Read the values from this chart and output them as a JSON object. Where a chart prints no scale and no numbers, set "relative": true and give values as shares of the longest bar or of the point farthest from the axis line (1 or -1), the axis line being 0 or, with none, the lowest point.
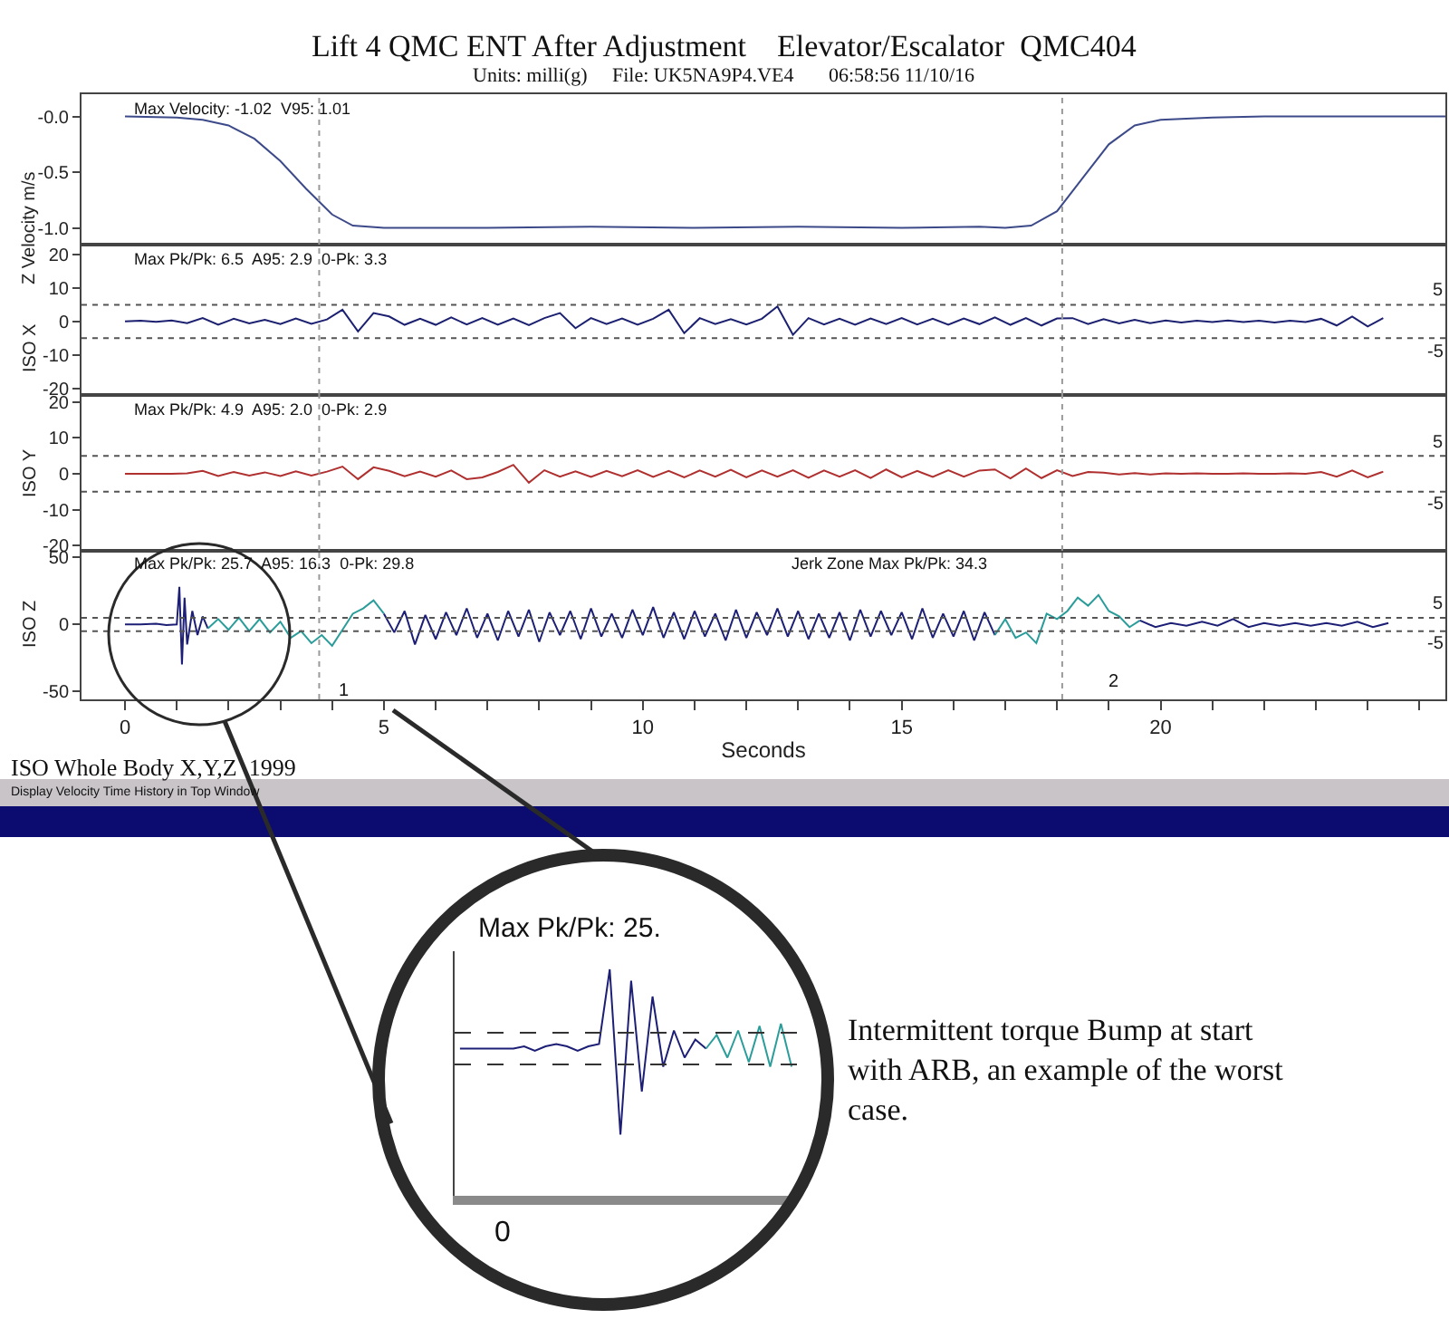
{
  "chart_data": [
    {
      "type": "line",
      "title": "Lift 4 QMC ENT After Adjustment    Elevator/Escalator  QMC404",
      "subtitle": "Units: milli(g)     File: UK5NA9P4.VE4       06:58:56 11/10/16",
      "ylabel": "Z Velocity m/s",
      "annotations": [
        "Max Velocity: -1.02  V95: 1.01"
      ],
      "x": [
        0,
        1,
        1.5,
        2,
        2.5,
        3,
        3.5,
        4,
        4.4,
        5,
        7,
        9,
        11,
        13,
        15,
        16.5,
        17,
        17.5,
        18,
        18.5,
        19,
        19.5,
        20,
        21,
        22,
        25.5
      ],
      "series": [
        {
          "color": "#3d4a8a",
          "values": [
            0,
            -0.01,
            -0.03,
            -0.08,
            -0.2,
            -0.4,
            -0.65,
            -0.88,
            -0.98,
            -1.0,
            -1.0,
            -0.99,
            -1.0,
            -0.99,
            -1.0,
            -0.99,
            -1.0,
            -0.98,
            -0.85,
            -0.55,
            -0.25,
            -0.08,
            -0.03,
            -0.01,
            0,
            0
          ]
        }
      ],
      "xlim": [
        -0.84,
        25.5
      ],
      "ylim": [
        -1.15,
        0.2
      ],
      "yticks": [
        {
          "value": 0,
          "label": "-0.0"
        },
        -0.5,
        {
          "value": -1,
          "label": "-1.0"
        }
      ],
      "xticks": [
        0,
        5,
        10,
        15,
        20
      ],
      "tick_labels": "y",
      "ref_lines": [
        {
          "axis": "x",
          "value": 3.75,
          "color": "#9a9a9a",
          "line_style": "dotted"
        },
        {
          "axis": "x",
          "value": 18.1,
          "color": "#9a9a9a",
          "line_style": "dotted"
        }
      ]
    },
    {
      "type": "line",
      "ylabel": "ISO X",
      "annotations": [
        "Max Pk/Pk: 6.5  A95: 2.9  0-Pk: 3.3"
      ],
      "x": [
        0,
        0.3,
        0.6,
        0.9,
        1.2,
        1.5,
        1.8,
        2.1,
        2.4,
        2.7,
        3.0,
        3.3,
        3.6,
        3.9,
        4.2,
        4.5,
        4.8,
        5.1,
        5.4,
        5.7,
        6.0,
        6.3,
        6.6,
        6.9,
        7.2,
        7.5,
        7.8,
        8.1,
        8.4,
        8.7,
        9.0,
        9.3,
        9.6,
        9.9,
        10.2,
        10.5,
        10.8,
        11.1,
        11.4,
        11.7,
        12.0,
        12.3,
        12.6,
        12.9,
        13.2,
        13.5,
        13.8,
        14.1,
        14.4,
        14.7,
        15.0,
        15.3,
        15.6,
        15.9,
        16.2,
        16.5,
        16.8,
        17.1,
        17.4,
        17.7,
        18.0,
        18.3,
        18.6,
        18.9,
        19.2,
        19.5,
        19.8,
        20.1,
        20.4,
        20.7,
        21.0,
        21.3,
        21.6,
        21.9,
        22.2,
        22.5,
        22.8,
        23.1,
        23.4,
        23.7,
        24.0,
        24.3
      ],
      "series": [
        {
          "color": "#1c2070",
          "values": [
            0,
            0.2,
            -0.1,
            0.3,
            -0.5,
            1,
            -1,
            0.8,
            -0.6,
            0.5,
            -0.8,
            0.9,
            -0.7,
            0.6,
            3.5,
            -3,
            2.5,
            1.5,
            -1,
            0.8,
            -1,
            1.2,
            -0.9,
            1,
            -1,
            0.9,
            -1.1,
            1,
            2.5,
            -2,
            1,
            -0.8,
            0.9,
            -1,
            0.8,
            3.5,
            -3.5,
            1,
            -0.8,
            0.7,
            -0.9,
            0.8,
            4.5,
            -4,
            1,
            -0.9,
            0.8,
            -1,
            0.9,
            -0.8,
            1,
            -0.9,
            0.8,
            -1,
            0.9,
            -0.8,
            1.2,
            -1,
            1,
            -1.2,
            0.9,
            1,
            -0.8,
            0.7,
            -0.6,
            0.5,
            -0.5,
            0.3,
            -0.3,
            0.2,
            -0.2,
            0.3,
            -0.2,
            0.2,
            -0.3,
            0.2,
            -0.2,
            0.8,
            -1.2,
            1.5,
            -1.5,
            1
          ]
        }
      ],
      "xlim": [
        -0.84,
        25.5
      ],
      "ylim": [
        -22,
        23
      ],
      "yticks": [
        20,
        10,
        0,
        -10,
        -20
      ],
      "xticks": [
        0,
        5,
        10,
        15,
        20
      ],
      "tick_labels": "y",
      "ref_lines": [
        {
          "axis": "x",
          "value": 3.75,
          "color": "#9a9a9a",
          "line_style": "dotted"
        },
        {
          "axis": "x",
          "value": 18.1,
          "color": "#9a9a9a",
          "line_style": "dotted"
        },
        {
          "axis": "y",
          "value": 5,
          "label": "5",
          "color": "#555555",
          "line_style": "dotted"
        },
        {
          "axis": "y",
          "value": -5,
          "label": "-5",
          "color": "#555555",
          "line_style": "dotted"
        }
      ]
    },
    {
      "type": "line",
      "ylabel": "ISO Y",
      "annotations": [
        "Max Pk/Pk: 4.9  A95: 2.0  0-Pk: 2.9"
      ],
      "x": [
        0,
        0.3,
        0.6,
        0.9,
        1.2,
        1.5,
        1.8,
        2.1,
        2.4,
        2.7,
        3.0,
        3.3,
        3.6,
        3.9,
        4.2,
        4.5,
        4.8,
        5.1,
        5.4,
        5.7,
        6.0,
        6.3,
        6.6,
        6.9,
        7.2,
        7.5,
        7.8,
        8.1,
        8.4,
        8.7,
        9.0,
        9.3,
        9.6,
        9.9,
        10.2,
        10.5,
        10.8,
        11.1,
        11.4,
        11.7,
        12.0,
        12.3,
        12.6,
        12.9,
        13.2,
        13.5,
        13.8,
        14.1,
        14.4,
        14.7,
        15.0,
        15.3,
        15.6,
        15.9,
        16.2,
        16.5,
        16.8,
        17.1,
        17.4,
        17.7,
        18.0,
        18.3,
        18.6,
        18.9,
        19.2,
        19.5,
        19.8,
        20.1,
        20.4,
        20.7,
        21.0,
        21.3,
        21.6,
        21.9,
        22.2,
        22.5,
        22.8,
        23.1,
        23.4,
        23.7,
        24.0,
        24.3
      ],
      "series": [
        {
          "color": "#b03030",
          "values": [
            0,
            0,
            0,
            0,
            0.1,
            0.8,
            -0.6,
            0.5,
            -0.5,
            0.4,
            -0.6,
            0.7,
            -0.5,
            0.6,
            2,
            -1.5,
            1.8,
            0.8,
            -0.7,
            0.6,
            -0.8,
            0.9,
            -1.5,
            -1,
            0.5,
            2.5,
            -2.5,
            1,
            -0.8,
            0.7,
            -0.9,
            0.8,
            -0.7,
            1,
            -0.9,
            0.8,
            -1,
            0.9,
            -0.8,
            1.1,
            -1,
            0.9,
            -0.8,
            1,
            -1.1,
            0.9,
            -0.8,
            1,
            -1.2,
            1.2,
            -1,
            0.8,
            -0.9,
            1,
            -0.8,
            0.9,
            1.2,
            -1.3,
            1.5,
            -1.2,
            1,
            -0.6,
            0.5,
            0.3,
            -0.2,
            0.2,
            -0.2,
            0.1,
            0,
            0.1,
            0,
            0,
            0.1,
            0,
            0,
            0.1,
            0,
            0.5,
            -0.8,
            0.9,
            -1,
            0.6
          ]
        }
      ],
      "xlim": [
        -0.84,
        25.5
      ],
      "ylim": [
        -21.5,
        22
      ],
      "yticks": [
        20,
        10,
        0,
        -10,
        -20
      ],
      "xticks": [
        0,
        5,
        10,
        15,
        20
      ],
      "tick_labels": "y",
      "ref_lines": [
        {
          "axis": "x",
          "value": 3.75,
          "color": "#9a9a9a",
          "line_style": "dotted"
        },
        {
          "axis": "x",
          "value": 18.1,
          "color": "#9a9a9a",
          "line_style": "dotted"
        },
        {
          "axis": "y",
          "value": 5,
          "label": "5",
          "color": "#555555",
          "line_style": "dotted"
        },
        {
          "axis": "y",
          "value": -5,
          "label": "-5",
          "color": "#555555",
          "line_style": "dotted"
        }
      ]
    },
    {
      "type": "line",
      "ylabel": "ISO Z",
      "xlabel": "Seconds",
      "annotations": [
        "Max Pk/Pk: 25.7  A95: 16.3  0-Pk: 29.8",
        "Jerk Zone Max Pk/Pk: 34.3",
        "ISO Whole Body X,Y,Z  1999",
        "Display Velocity Time History in Top Window",
        "1",
        "2"
      ],
      "series": [
        {
          "color": "#1c1f75",
          "x": [
            0,
            0.3,
            0.6,
            0.8,
            1.0,
            1.05,
            1.1,
            1.15,
            1.2,
            1.3,
            1.4,
            1.5,
            1.6
          ],
          "values": [
            0,
            0,
            0.5,
            -0.5,
            0,
            28,
            -30,
            20,
            -15,
            10,
            -8,
            6,
            -3
          ]
        },
        {
          "color": "#2a9d9a",
          "x": [
            1.6,
            1.8,
            2.0,
            2.2,
            2.4,
            2.6,
            2.8,
            3.0,
            3.2,
            3.4,
            3.6,
            3.8,
            4.0,
            4.2,
            4.4,
            4.6,
            4.8,
            5.0
          ],
          "values": [
            -3,
            4,
            -4,
            5,
            -5,
            4,
            -6,
            2,
            -10,
            -5,
            -14,
            -8,
            -16,
            -4,
            8,
            12,
            18,
            8
          ]
        },
        {
          "color": "#1c1f75",
          "x": [
            5.0,
            5.2,
            5.4,
            5.6,
            5.8,
            6.0,
            6.2,
            6.4,
            6.6,
            6.8,
            7.0,
            7.2,
            7.4,
            7.6,
            7.8,
            8.0,
            8.2,
            8.4,
            8.6,
            8.8,
            9.0,
            9.2,
            9.4,
            9.6,
            9.8,
            10.0,
            10.2,
            10.4,
            10.6,
            10.8,
            11.0,
            11.2,
            11.4,
            11.6,
            11.8,
            12.0,
            12.2,
            12.4,
            12.6,
            12.8,
            13.0,
            13.2,
            13.4,
            13.6,
            13.8,
            14.0,
            14.2,
            14.4,
            14.6,
            14.8,
            15.0,
            15.2,
            15.4,
            15.6,
            15.8,
            16.0,
            16.2,
            16.4,
            16.6,
            16.8
          ],
          "values": [
            8,
            -6,
            10,
            -15,
            7,
            -11,
            9,
            -8,
            12,
            -10,
            8,
            -12,
            10,
            -9,
            11,
            -13,
            9,
            -8,
            10,
            -11,
            12,
            -9,
            8,
            -10,
            11,
            -8,
            13,
            -10,
            9,
            -11,
            10,
            -9,
            8,
            -12,
            11,
            -10,
            9,
            -8,
            12,
            -9,
            10,
            -11,
            8,
            -10,
            9,
            -12,
            11,
            -9,
            10,
            -8,
            9,
            -11,
            12,
            -10,
            8,
            -9,
            10,
            -12,
            9,
            -8
          ]
        },
        {
          "color": "#2a9d9a",
          "x": [
            16.8,
            17.0,
            17.2,
            17.4,
            17.6,
            17.8,
            18.0,
            18.2,
            18.4,
            18.6,
            18.8,
            19.0,
            19.2,
            19.4,
            19.6
          ],
          "values": [
            -8,
            4,
            -10,
            -6,
            -14,
            8,
            4,
            10,
            20,
            14,
            22,
            10,
            6,
            -2,
            3
          ]
        },
        {
          "color": "#1c1f75",
          "x": [
            19.6,
            19.9,
            20.2,
            20.5,
            20.8,
            21.1,
            21.4,
            21.7,
            22.0,
            22.3,
            22.6,
            22.9,
            23.2,
            23.5,
            23.8,
            24.1,
            24.4
          ],
          "values": [
            3,
            -2,
            1,
            -1,
            2,
            -1,
            4,
            -2,
            1,
            -1,
            1,
            -1,
            1,
            -1,
            2,
            -2,
            1
          ]
        }
      ],
      "xlim": [
        -0.84,
        25.5
      ],
      "ylim": [
        -56,
        55
      ],
      "yticks": [
        50,
        0,
        -50
      ],
      "xticks": [
        0,
        {
          "value": 1,
          "label": null
        },
        {
          "value": 2,
          "label": null
        },
        {
          "value": 3,
          "label": null
        },
        {
          "value": 4,
          "label": null
        },
        5,
        {
          "value": 6,
          "label": null
        },
        {
          "value": 7,
          "label": null
        },
        {
          "value": 8,
          "label": null
        },
        {
          "value": 9,
          "label": null
        },
        10,
        {
          "value": 11,
          "label": null
        },
        {
          "value": 12,
          "label": null
        },
        {
          "value": 13,
          "label": null
        },
        {
          "value": 14,
          "label": null
        },
        15,
        {
          "value": 16,
          "label": null
        },
        {
          "value": 17,
          "label": null
        },
        {
          "value": 18,
          "label": null
        },
        {
          "value": 19,
          "label": null
        },
        20,
        {
          "value": 21,
          "label": null
        },
        {
          "value": 22,
          "label": null
        },
        {
          "value": 23,
          "label": null
        },
        {
          "value": 24,
          "label": null
        },
        {
          "value": 25,
          "label": null
        }
      ],
      "ref_lines": [
        {
          "axis": "x",
          "value": 3.75,
          "color": "#9a9a9a",
          "line_style": "dotted"
        },
        {
          "axis": "x",
          "value": 18.1,
          "color": "#9a9a9a",
          "line_style": "dotted"
        },
        {
          "axis": "y",
          "value": 5,
          "label": "5",
          "color": "#555555",
          "line_style": "dotted"
        },
        {
          "axis": "y",
          "value": -5,
          "label": "-5",
          "color": "#555555",
          "line_style": "dotted"
        }
      ]
    },
    {
      "type": "line",
      "relative": true,
      "annotations": [
        "Max Pk/Pk: 25.",
        "Intermittent torque Bump at start\nwith ARB, an example of the worst\ncase.",
        "0"
      ],
      "categories": [
        null,
        null,
        null,
        null,
        null,
        null,
        null,
        null,
        null,
        null,
        null,
        null,
        null,
        null,
        null,
        null,
        null,
        null,
        null,
        null,
        null,
        null,
        null,
        null,
        null,
        null,
        null,
        null,
        null,
        null,
        null,
        null
      ],
      "series": [
        {
          "color": "#1c1f75",
          "values": [
            0.65,
            0.65,
            0.65,
            0.65,
            0.65,
            0.65,
            0.66,
            0.64,
            0.66,
            0.67,
            0.66,
            0.64,
            0.66,
            0.67,
            1,
            0.27,
            0.95,
            0.46,
            0.88,
            0.57,
            0.73,
            0.61,
            0.69,
            0.65,
            null,
            null,
            null,
            null,
            null,
            null,
            null,
            null
          ]
        },
        {
          "color": "#2a9d9a",
          "values": [
            null,
            null,
            null,
            null,
            null,
            null,
            null,
            null,
            null,
            null,
            null,
            null,
            null,
            null,
            null,
            null,
            null,
            null,
            null,
            null,
            null,
            null,
            null,
            0.65,
            0.71,
            0.61,
            0.73,
            0.59,
            0.75,
            0.57,
            0.76,
            0.57
          ]
        }
      ],
      "tick_labels": false,
      "ref_lines": [
        {
          "axis": "y",
          "value": 0.72,
          "color": "#333333",
          "line_style": "dashed"
        },
        {
          "axis": "y",
          "value": 0.58,
          "color": "#333333",
          "line_style": "dashed"
        }
      ]
    }
  ]
}
